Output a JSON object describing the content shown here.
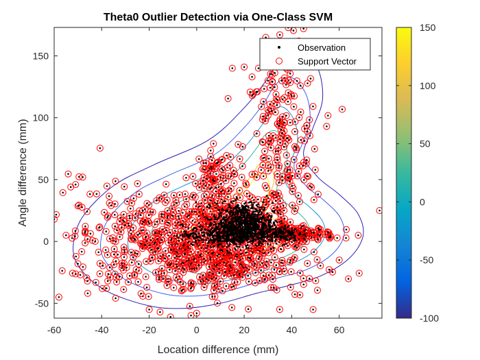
{
  "chart_data": {
    "type": "scatter",
    "title": "Theta0 Outlier Detection via One-Class SVM",
    "xlabel": "Location difference (mm)",
    "ylabel": "Angle difference (mm)",
    "xlim": [
      -60,
      78
    ],
    "ylim": [
      -62,
      173
    ],
    "xticks": [
      -60,
      -40,
      -20,
      0,
      20,
      40,
      60
    ],
    "yticks": [
      -50,
      0,
      50,
      100,
      150
    ],
    "grid": false,
    "legend": {
      "placement": "top-right",
      "entries": [
        "Observation",
        "Support Vector"
      ]
    },
    "series": [
      {
        "name": "Observation",
        "marker": "dot",
        "color": "#000000",
        "clusters": [
          {
            "cx": 20,
            "cy": 15,
            "sx": 6,
            "sy": 8,
            "n": 700
          },
          {
            "cx": 12,
            "cy": 5,
            "sx": 9,
            "sy": 4,
            "n": 350
          },
          {
            "cx": 33,
            "cy": 6,
            "sx": 5,
            "sy": 3,
            "n": 150
          }
        ]
      },
      {
        "name": "Support Vector",
        "marker": "circle-open",
        "color": "#ff0000",
        "clusters": [
          {
            "cx": 12,
            "cy": 8,
            "sx": 14,
            "sy": 20,
            "n": 420
          },
          {
            "cx": 36,
            "cy": 75,
            "sx": 8,
            "sy": 40,
            "n": 220
          },
          {
            "cx": -12,
            "cy": 0,
            "sx": 18,
            "sy": 20,
            "n": 330
          },
          {
            "cx": 42,
            "cy": 6,
            "sx": 8,
            "sy": 3,
            "n": 150
          },
          {
            "cx": 8,
            "cy": 55,
            "sx": 4,
            "sy": 10,
            "n": 60
          },
          {
            "cx": 15,
            "cy": -20,
            "sx": 18,
            "sy": 14,
            "n": 200
          },
          {
            "cx": -35,
            "cy": 10,
            "sx": 12,
            "sy": 25,
            "n": 60
          }
        ],
        "outliers": [
          [
            -60,
            18
          ],
          [
            -58,
            -45
          ],
          [
            -53,
            44
          ],
          [
            -51,
            46
          ],
          [
            -48,
            52
          ],
          [
            -55,
            5
          ],
          [
            -50,
            -18
          ],
          [
            -49,
            -27
          ],
          [
            -46,
            -32
          ],
          [
            77,
            25
          ],
          [
            68,
            5
          ],
          [
            60,
            -15
          ],
          [
            49,
            -55
          ],
          [
            45,
            172
          ],
          [
            40,
            160
          ],
          [
            38,
            151
          ],
          [
            35,
            167
          ],
          [
            -11,
            -61
          ],
          [
            -20,
            -55
          ],
          [
            0,
            -58
          ],
          [
            26,
            140
          ],
          [
            20,
            141
          ],
          [
            30,
            130
          ],
          [
            15,
            140
          ],
          [
            43,
            162
          ]
        ]
      }
    ],
    "contours": [
      {
        "level": 150,
        "color": "#f9fb0e",
        "scale": 0.32
      },
      {
        "level": 100,
        "color": "#fdbb2d",
        "scale": 0.38
      },
      {
        "level": 50,
        "color": "#33b7a0",
        "scale": 0.55
      },
      {
        "level": 0,
        "color": "#1f95d4",
        "scale": 0.68
      },
      {
        "level": -50,
        "color": "#3c5df0",
        "scale": 0.84
      },
      {
        "level": -100,
        "color": "#2a1eb4",
        "scale": 1.0
      }
    ],
    "colorbar": {
      "colormap": "parula",
      "range": [
        -100,
        150
      ],
      "ticks": [
        -100,
        -50,
        0,
        50,
        100,
        150
      ]
    }
  }
}
